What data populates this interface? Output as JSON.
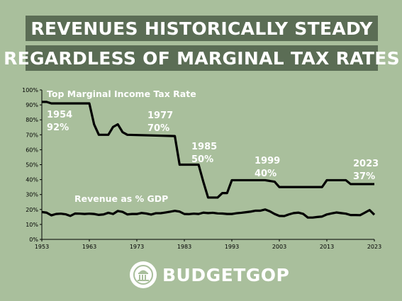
{
  "title": {
    "line1": "REVENUES HISTORICALLY STEADY",
    "line2": "REGARDLESS OF MARGINAL TAX RATES"
  },
  "colors": {
    "background": "#a9bf9c",
    "banner": "#5b6d55",
    "line": "#000000",
    "label_text": "#ffffff"
  },
  "logo": {
    "text": "BUDGETGOP",
    "icon": "capitol-building-icon"
  },
  "chart_data": {
    "type": "line",
    "xlim": [
      1953,
      2023
    ],
    "ylim": [
      0,
      100
    ],
    "grid": false,
    "x_ticks": [
      1953,
      1963,
      1973,
      1983,
      1993,
      2003,
      2013,
      2023
    ],
    "y_ticks": [
      0,
      10,
      20,
      30,
      40,
      50,
      60,
      70,
      80,
      90,
      100
    ],
    "y_tick_labels": [
      "0%",
      "10%",
      "20%",
      "30%",
      "40%",
      "50%",
      "60%",
      "70%",
      "80%",
      "90%",
      "100%"
    ],
    "series": [
      {
        "name": "Top Marginal Income Tax Rate",
        "points": [
          [
            1953,
            92
          ],
          [
            1954,
            92
          ],
          [
            1955,
            91
          ],
          [
            1963,
            91
          ],
          [
            1964,
            77
          ],
          [
            1965,
            70
          ],
          [
            1967,
            70
          ],
          [
            1968,
            75.25
          ],
          [
            1969,
            77
          ],
          [
            1970,
            71.75
          ],
          [
            1971,
            70
          ],
          [
            1981,
            69.13
          ],
          [
            1982,
            50
          ],
          [
            1986,
            50
          ],
          [
            1987,
            38.5
          ],
          [
            1988,
            28
          ],
          [
            1990,
            28
          ],
          [
            1991,
            31
          ],
          [
            1992,
            31
          ],
          [
            1993,
            39.6
          ],
          [
            2000,
            39.6
          ],
          [
            2001,
            39.1
          ],
          [
            2002,
            38.6
          ],
          [
            2003,
            35
          ],
          [
            2012,
            35
          ],
          [
            2013,
            39.6
          ],
          [
            2017,
            39.6
          ],
          [
            2018,
            37
          ],
          [
            2023,
            37
          ]
        ]
      },
      {
        "name": "Revenue as % GDP",
        "points": [
          [
            1953,
            18.3
          ],
          [
            1954,
            17.9
          ],
          [
            1955,
            16.1
          ],
          [
            1956,
            17.0
          ],
          [
            1957,
            17.2
          ],
          [
            1958,
            16.8
          ],
          [
            1959,
            15.7
          ],
          [
            1960,
            17.3
          ],
          [
            1961,
            17.2
          ],
          [
            1962,
            17.0
          ],
          [
            1963,
            17.2
          ],
          [
            1964,
            17.0
          ],
          [
            1965,
            16.4
          ],
          [
            1966,
            16.7
          ],
          [
            1967,
            17.8
          ],
          [
            1968,
            17.0
          ],
          [
            1969,
            19.0
          ],
          [
            1970,
            18.4
          ],
          [
            1971,
            16.7
          ],
          [
            1972,
            17.0
          ],
          [
            1973,
            17.0
          ],
          [
            1974,
            17.7
          ],
          [
            1975,
            17.3
          ],
          [
            1976,
            16.6
          ],
          [
            1977,
            17.5
          ],
          [
            1978,
            17.5
          ],
          [
            1979,
            18.0
          ],
          [
            1980,
            18.5
          ],
          [
            1981,
            19.1
          ],
          [
            1982,
            18.6
          ],
          [
            1983,
            17.0
          ],
          [
            1984,
            16.9
          ],
          [
            1985,
            17.2
          ],
          [
            1986,
            17.0
          ],
          [
            1987,
            17.9
          ],
          [
            1988,
            17.6
          ],
          [
            1989,
            17.8
          ],
          [
            1990,
            17.4
          ],
          [
            1991,
            17.3
          ],
          [
            1992,
            17.0
          ],
          [
            1993,
            17.0
          ],
          [
            1994,
            17.5
          ],
          [
            1995,
            17.8
          ],
          [
            1996,
            18.2
          ],
          [
            1997,
            18.6
          ],
          [
            1998,
            19.2
          ],
          [
            1999,
            19.2
          ],
          [
            2000,
            20.0
          ],
          [
            2001,
            18.8
          ],
          [
            2002,
            17.0
          ],
          [
            2003,
            15.7
          ],
          [
            2004,
            15.6
          ],
          [
            2005,
            16.7
          ],
          [
            2006,
            17.6
          ],
          [
            2007,
            17.9
          ],
          [
            2008,
            17.1
          ],
          [
            2009,
            14.6
          ],
          [
            2010,
            14.6
          ],
          [
            2011,
            15.0
          ],
          [
            2012,
            15.3
          ],
          [
            2013,
            16.7
          ],
          [
            2014,
            17.4
          ],
          [
            2015,
            18.0
          ],
          [
            2016,
            17.6
          ],
          [
            2017,
            17.2
          ],
          [
            2018,
            16.3
          ],
          [
            2019,
            16.3
          ],
          [
            2020,
            16.2
          ],
          [
            2021,
            17.9
          ],
          [
            2022,
            19.6
          ],
          [
            2023,
            16.5
          ]
        ]
      }
    ],
    "labels": {
      "series1_name": "Top Marginal Income Tax Rate",
      "series2_name": "Revenue as % GDP"
    },
    "annotations": [
      {
        "year": "1954",
        "value": "92%"
      },
      {
        "year": "1977",
        "value": "70%"
      },
      {
        "year": "1985",
        "value": "50%"
      },
      {
        "year": "1999",
        "value": "40%"
      },
      {
        "year": "2023",
        "value": "37%"
      }
    ]
  }
}
